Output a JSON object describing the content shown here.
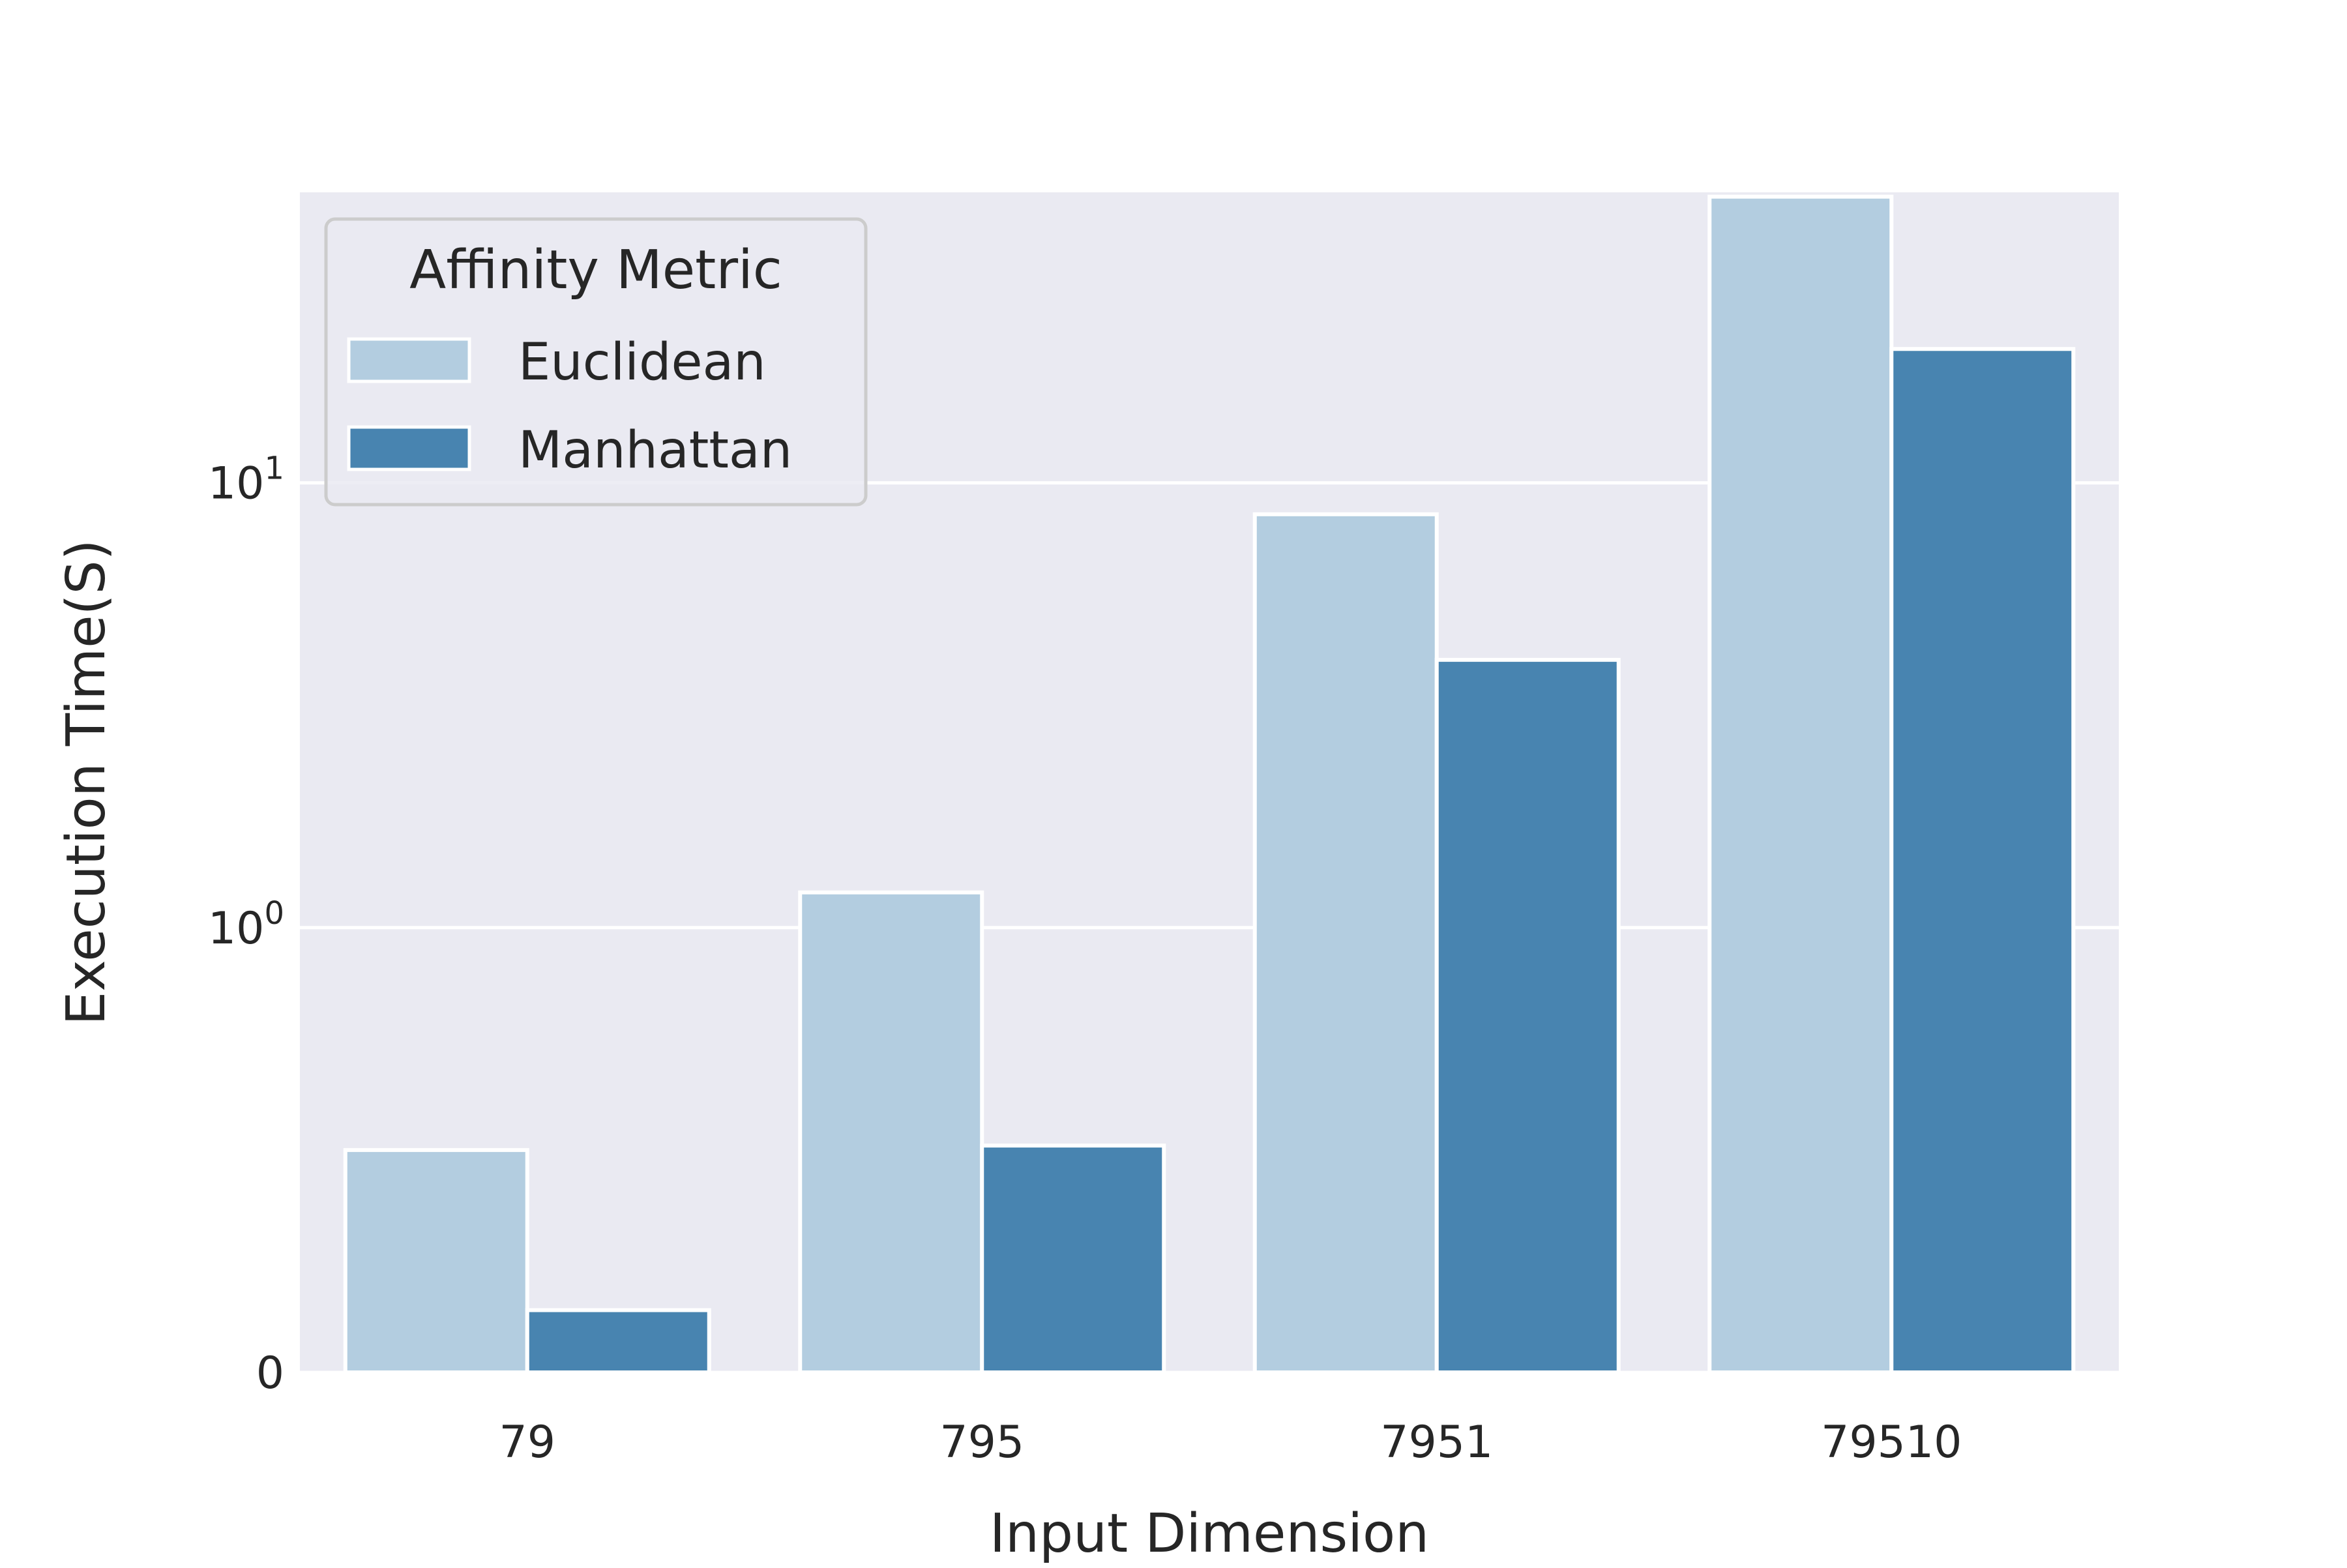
{
  "chart_data": {
    "type": "bar",
    "xlabel": "Input Dimension",
    "ylabel": "Execution Time(S)",
    "categories": [
      "79",
      "795",
      "7951",
      "79510"
    ],
    "series": [
      {
        "name": "Euclidean",
        "values": [
          0.5,
          1.2,
          8.5,
          44
        ],
        "color": "#b3cde0"
      },
      {
        "name": "Manhattan",
        "values": [
          0.14,
          0.51,
          4.0,
          20
        ],
        "color": "#4884b0"
      }
    ],
    "y_scale": "symlog",
    "linthresh": 1,
    "ylim": [
      0,
      45
    ],
    "yticks": [
      {
        "value": 0,
        "base": "0",
        "exp": ""
      },
      {
        "value": 1,
        "base": "10",
        "exp": "0"
      },
      {
        "value": 10,
        "base": "10",
        "exp": "1"
      }
    ],
    "legend": {
      "title": "Affinity Metric",
      "placement": "upper-left"
    },
    "grid": true,
    "colors": {
      "panel_bg": "#eaeaf2",
      "grid": "#ffffff",
      "text": "#262626"
    }
  }
}
